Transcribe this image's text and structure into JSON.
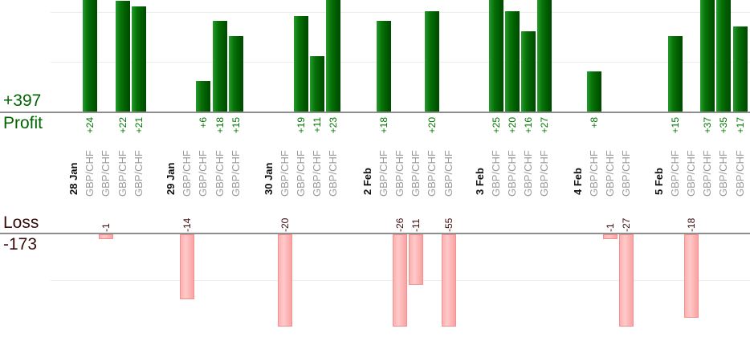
{
  "summary": {
    "profit_total": "+397",
    "profit_label": "Profit",
    "loss_label": "Loss",
    "loss_total": "-173"
  },
  "chart_data": {
    "type": "bar",
    "description": "Daily trading results per position; green bars above the Profit axis, pink bars below the Loss axis (long losses clipped at chart bottom)",
    "profit_axis": {
      "total": 397,
      "gridline_values": [
        10,
        20
      ],
      "baseline": 0
    },
    "loss_axis": {
      "total": -173,
      "gridline_values": [
        -10
      ],
      "baseline": 0,
      "visible_min": -20
    },
    "groups": [
      {
        "date": "28 Jan",
        "trades": [
          {
            "symbol": "GBP/CHF",
            "value": 24,
            "label": "+24"
          },
          {
            "symbol": "GBP/CHF",
            "value": -1,
            "label": "-1"
          },
          {
            "symbol": "GBP/CHF",
            "value": 22,
            "label": "+22"
          },
          {
            "symbol": "GBP/CHF",
            "value": 21,
            "label": "+21"
          }
        ]
      },
      {
        "date": "29 Jan",
        "trades": [
          {
            "symbol": "GBP/CHF",
            "value": -14,
            "label": "-14"
          },
          {
            "symbol": "GBP/CHF",
            "value": 6,
            "label": "+6"
          },
          {
            "symbol": "GBP/CHF",
            "value": 18,
            "label": "+18"
          },
          {
            "symbol": "GBP/CHF",
            "value": 15,
            "label": "+15"
          }
        ]
      },
      {
        "date": "30 Jan",
        "trades": [
          {
            "symbol": "GBP/CHF",
            "value": -20,
            "label": "-20"
          },
          {
            "symbol": "GBP/CHF",
            "value": 19,
            "label": "+19"
          },
          {
            "symbol": "GBP/CHF",
            "value": 11,
            "label": "+11"
          },
          {
            "symbol": "GBP/CHF",
            "value": 23,
            "label": "+23"
          }
        ]
      },
      {
        "date": "2 Feb",
        "trades": [
          {
            "symbol": "GBP/CHF",
            "value": 18,
            "label": "+18"
          },
          {
            "symbol": "GBP/CHF",
            "value": -26,
            "label": "-26"
          },
          {
            "symbol": "GBP/CHF",
            "value": -11,
            "label": "-11"
          },
          {
            "symbol": "GBP/CHF",
            "value": 20,
            "label": "+20"
          },
          {
            "symbol": "GBP/CHF",
            "value": -55,
            "label": "-55"
          }
        ]
      },
      {
        "date": "3 Feb",
        "trades": [
          {
            "symbol": "GBP/CHF",
            "value": 25,
            "label": "+25"
          },
          {
            "symbol": "GBP/CHF",
            "value": 20,
            "label": "+20"
          },
          {
            "symbol": "GBP/CHF",
            "value": 16,
            "label": "+16"
          },
          {
            "symbol": "GBP/CHF",
            "value": 27,
            "label": "+27"
          }
        ]
      },
      {
        "date": "4 Feb",
        "trades": [
          {
            "symbol": "GBP/CHF",
            "value": 8,
            "label": "+8"
          },
          {
            "symbol": "GBP/CHF",
            "value": -1,
            "label": "-1"
          },
          {
            "symbol": "GBP/CHF",
            "value": -27,
            "label": "-27"
          }
        ]
      },
      {
        "date": "5 Feb",
        "trades": [
          {
            "symbol": "GBP/CHF",
            "value": 15,
            "label": "+15"
          },
          {
            "symbol": "GBP/CHF",
            "value": -18,
            "label": "-18"
          },
          {
            "symbol": "GBP/CHF",
            "value": 37,
            "label": "+37"
          },
          {
            "symbol": "GBP/CHF",
            "value": 35,
            "label": "+35"
          },
          {
            "symbol": "GBP/CHF",
            "value": 17,
            "label": "+17"
          }
        ]
      }
    ],
    "colors": {
      "profit_bar": "#006400",
      "profit_text": "#007800",
      "loss_bar": "#ffb9b9",
      "loss_text": "#3b0b0b",
      "currency_text": "#9a9a9a",
      "date_text": "#111111",
      "axis_line": "#8f8f8f",
      "gridline": "#ececec"
    }
  }
}
